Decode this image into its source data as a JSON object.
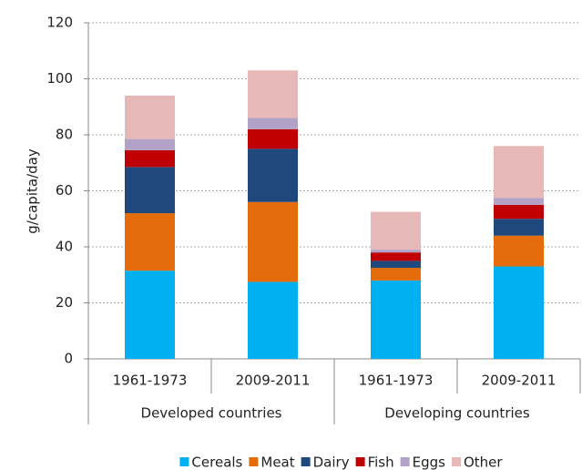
{
  "chart_data": {
    "type": "stacked-bar",
    "y_label": "g/capita/day",
    "categories": [
      "1961-1973",
      "2009-2011",
      "1961-1973",
      "2009-2011"
    ],
    "groups": [
      "Developed countries",
      "Developing countries"
    ],
    "series": [
      {
        "name": "Cereals",
        "color": "#00b0f0",
        "values": [
          31.5,
          27.5,
          28,
          33
        ]
      },
      {
        "name": "Meat",
        "color": "#e46c0a",
        "values": [
          20.5,
          28.5,
          4.5,
          11
        ]
      },
      {
        "name": "Dairy",
        "color": "#1f497d",
        "values": [
          16.5,
          19,
          2.5,
          6
        ]
      },
      {
        "name": "Fish",
        "color": "#c00000",
        "values": [
          6,
          7,
          3,
          5
        ]
      },
      {
        "name": "Eggs",
        "color": "#b3a2c7",
        "values": [
          4,
          4,
          1,
          2.5
        ]
      },
      {
        "name": "Other",
        "color": "#e6b9b8",
        "values": [
          15.5,
          17,
          13.5,
          18.5
        ]
      }
    ],
    "ylim": [
      0,
      120
    ],
    "yticks": [
      0,
      20,
      40,
      60,
      80,
      100,
      120
    ],
    "grid": true
  }
}
